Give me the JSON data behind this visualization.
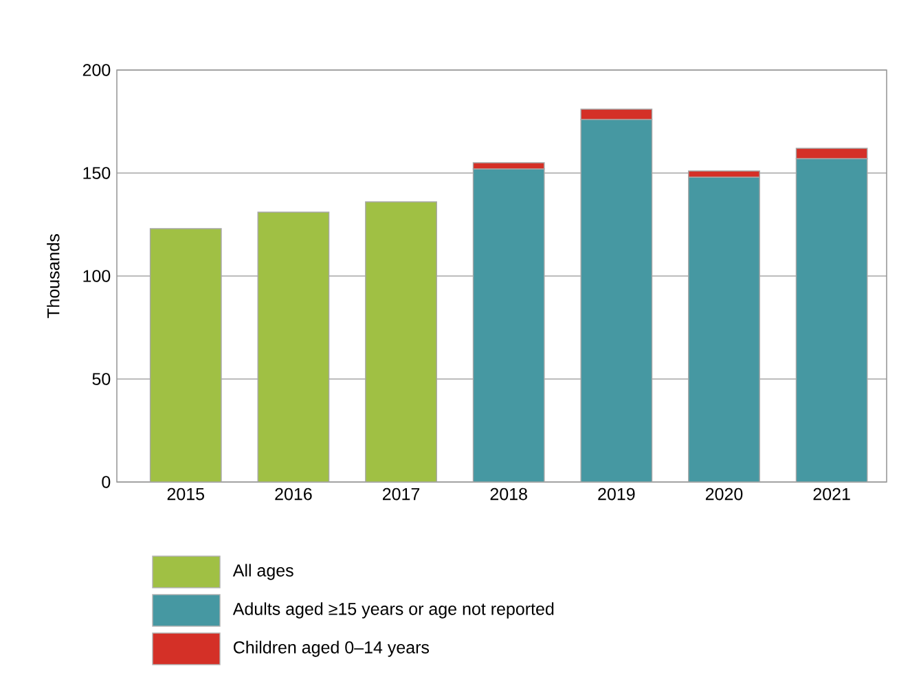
{
  "chart_data": {
    "type": "bar",
    "ylabel": "Thousands",
    "categories": [
      "2015",
      "2016",
      "2017",
      "2018",
      "2019",
      "2020",
      "2021"
    ],
    "stacked": true,
    "ylim": [
      0,
      200
    ],
    "yticks": [
      0,
      50,
      100,
      150,
      200
    ],
    "grid": "y",
    "legend": "bottom",
    "series": [
      {
        "name": "All ages",
        "color": "#a0c044",
        "values": [
          123,
          131,
          136,
          null,
          null,
          null,
          null
        ]
      },
      {
        "name": "Adults aged ≥15 years or age not reported",
        "color": "#4698a2",
        "values": [
          null,
          null,
          null,
          152,
          176,
          148,
          157
        ]
      },
      {
        "name": "Children aged 0–14 years",
        "color": "#d43027",
        "values": [
          null,
          null,
          null,
          3,
          5,
          3,
          5
        ]
      }
    ]
  }
}
